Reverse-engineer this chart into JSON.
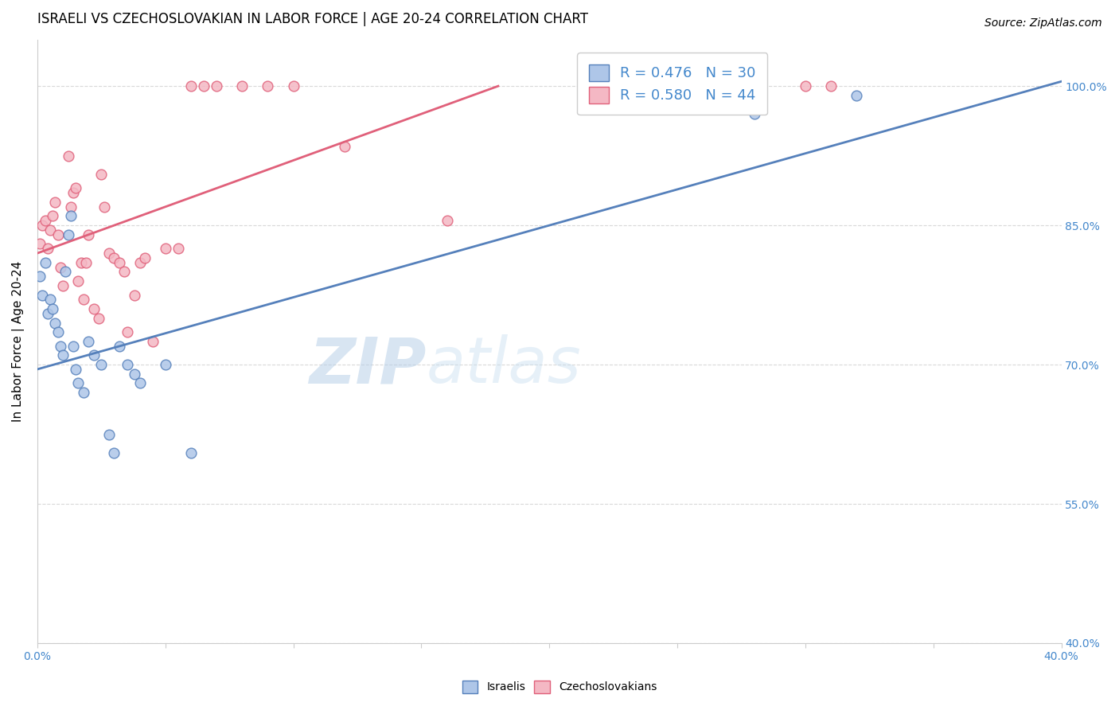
{
  "title": "ISRAELI VS CZECHOSLOVAKIAN IN LABOR FORCE | AGE 20-24 CORRELATION CHART",
  "source_text": "Source: ZipAtlas.com",
  "ylabel": "In Labor Force | Age 20-24",
  "xlim": [
    0.0,
    0.4
  ],
  "ylim": [
    0.4,
    1.05
  ],
  "ytick_labels": [
    "40.0%",
    "55.0%",
    "70.0%",
    "85.0%",
    "100.0%"
  ],
  "ytick_values": [
    0.4,
    0.55,
    0.7,
    0.85,
    1.0
  ],
  "xtick_labels": [
    "0.0%",
    "",
    "",
    "",
    "",
    "",
    "",
    "",
    "40.0%"
  ],
  "xtick_values": [
    0.0,
    0.05,
    0.1,
    0.15,
    0.2,
    0.25,
    0.3,
    0.35,
    0.4
  ],
  "watermark_zip": "ZIP",
  "watermark_atlas": "atlas",
  "israeli_color": "#aec6e8",
  "israeli_edge_color": "#5580bb",
  "czechoslovakian_color": "#f4b8c4",
  "czechoslovakian_edge_color": "#e0607a",
  "legend_blue_text": "R = 0.476   N = 30",
  "legend_pink_text": "R = 0.580   N = 44",
  "israeli_x": [
    0.001,
    0.002,
    0.003,
    0.004,
    0.005,
    0.006,
    0.007,
    0.008,
    0.009,
    0.01,
    0.011,
    0.012,
    0.013,
    0.014,
    0.015,
    0.016,
    0.018,
    0.02,
    0.022,
    0.025,
    0.028,
    0.03,
    0.032,
    0.035,
    0.038,
    0.04,
    0.05,
    0.06,
    0.28,
    0.32
  ],
  "israeli_y": [
    0.795,
    0.775,
    0.81,
    0.755,
    0.77,
    0.76,
    0.745,
    0.735,
    0.72,
    0.71,
    0.8,
    0.84,
    0.86,
    0.72,
    0.695,
    0.68,
    0.67,
    0.725,
    0.71,
    0.7,
    0.625,
    0.605,
    0.72,
    0.7,
    0.69,
    0.68,
    0.7,
    0.605,
    0.97,
    0.99
  ],
  "czechoslovakian_x": [
    0.001,
    0.002,
    0.003,
    0.004,
    0.005,
    0.006,
    0.007,
    0.008,
    0.009,
    0.01,
    0.012,
    0.013,
    0.014,
    0.015,
    0.016,
    0.017,
    0.018,
    0.019,
    0.02,
    0.022,
    0.024,
    0.025,
    0.026,
    0.028,
    0.03,
    0.032,
    0.034,
    0.035,
    0.038,
    0.04,
    0.042,
    0.045,
    0.05,
    0.055,
    0.06,
    0.065,
    0.07,
    0.08,
    0.09,
    0.1,
    0.12,
    0.16,
    0.3,
    0.31
  ],
  "czechoslovakian_y": [
    0.83,
    0.85,
    0.855,
    0.825,
    0.845,
    0.86,
    0.875,
    0.84,
    0.805,
    0.785,
    0.925,
    0.87,
    0.885,
    0.89,
    0.79,
    0.81,
    0.77,
    0.81,
    0.84,
    0.76,
    0.75,
    0.905,
    0.87,
    0.82,
    0.815,
    0.81,
    0.8,
    0.735,
    0.775,
    0.81,
    0.815,
    0.725,
    0.825,
    0.825,
    1.0,
    1.0,
    1.0,
    1.0,
    1.0,
    1.0,
    0.935,
    0.855,
    1.0,
    1.0
  ],
  "blue_line_x": [
    0.0,
    0.4
  ],
  "blue_line_y": [
    0.695,
    1.005
  ],
  "pink_line_x": [
    0.0,
    0.18
  ],
  "pink_line_y": [
    0.82,
    1.0
  ],
  "title_fontsize": 12,
  "source_fontsize": 10,
  "axis_label_fontsize": 11,
  "tick_fontsize": 10,
  "legend_fontsize": 13,
  "marker_size": 85,
  "background_color": "#ffffff",
  "grid_color": "#d8d8d8",
  "tick_color": "#4488cc",
  "blue_line_color": "#5580bb",
  "pink_line_color": "#e0607a"
}
